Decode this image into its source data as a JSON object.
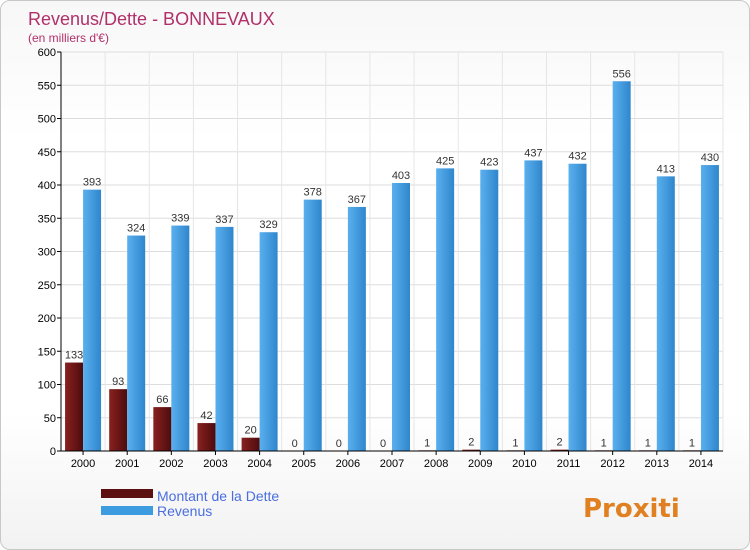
{
  "chart_data": {
    "type": "bar",
    "title": "Revenus/Dette - BONNEVAUX",
    "subtitle": "(en milliers d'€)",
    "categories": [
      "2000",
      "2001",
      "2002",
      "2003",
      "2004",
      "2005",
      "2006",
      "2007",
      "2008",
      "2009",
      "2010",
      "2011",
      "2012",
      "2013",
      "2014"
    ],
    "series": [
      {
        "name": "Montant de la Dette",
        "values": [
          133,
          93,
          66,
          42,
          20,
          0,
          0,
          0,
          1,
          2,
          1,
          2,
          1,
          1,
          1
        ],
        "color": "#7a1a1a"
      },
      {
        "name": "Revenus",
        "values": [
          393,
          324,
          339,
          337,
          329,
          378,
          367,
          403,
          425,
          423,
          437,
          432,
          556,
          413,
          430
        ],
        "color": "#3d9be0"
      }
    ],
    "ylim": [
      0,
      600
    ],
    "yticks": [
      0,
      50,
      100,
      150,
      200,
      250,
      300,
      350,
      400,
      450,
      500,
      550,
      600
    ],
    "grid": true,
    "legend": "bottom-left"
  },
  "logo": {
    "text": "Proxiti"
  },
  "colors": {
    "title": "#b0306a",
    "legend_text": "#4a6ee0",
    "axis": "#000000",
    "grid": "#dddddd"
  }
}
